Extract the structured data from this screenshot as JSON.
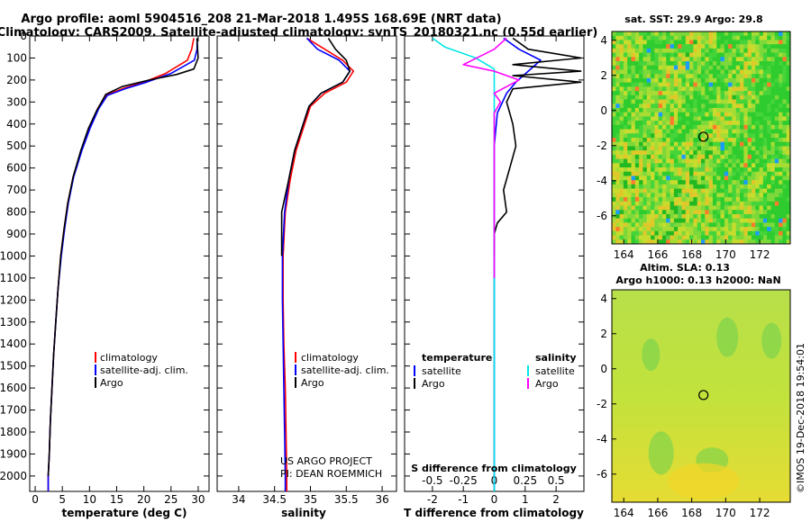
{
  "header": {
    "title_line1": "Argo profile: aoml 5904516_208 21-Mar-2018 1.495S 168.69E (NRT data)",
    "title_line2": "Climatology: CARS2009. Satellite-adjusted climatology: synTS_20180321.nc (0.55d earlier)"
  },
  "colors": {
    "climatology": "#ff0000",
    "satellite": "#0000ff",
    "argo": "#000000",
    "satellite_s": "#00e5e5",
    "argo_s": "#ff00ff"
  },
  "chart_data": [
    {
      "id": "temperature",
      "type": "line",
      "xlabel": "temperature (deg C)",
      "ylabel": "",
      "xlim": [
        -1,
        32
      ],
      "xticks": [
        "0",
        "5",
        "10",
        "15",
        "20",
        "25",
        "30"
      ],
      "ylim": [
        2070,
        0
      ],
      "yticks": [
        "0",
        "100",
        "200",
        "300",
        "400",
        "500",
        "600",
        "700",
        "800",
        "900",
        "1000",
        "1100",
        "1200",
        "1300",
        "1400",
        "1500",
        "1600",
        "1700",
        "1800",
        "1900",
        "2000"
      ],
      "legend": [
        "climatology",
        "satellite-adj. clim.",
        "Argo"
      ],
      "series": [
        {
          "name": "climatology",
          "color": "#ff0000",
          "points": [
            [
              29.2,
              10
            ],
            [
              28.8,
              60
            ],
            [
              28,
              110
            ],
            [
              24,
              170
            ],
            [
              20,
              210
            ],
            [
              16,
              240
            ],
            [
              13,
              270
            ],
            [
              11.5,
              330
            ],
            [
              10,
              420
            ],
            [
              8.5,
              520
            ],
            [
              7,
              640
            ],
            [
              6,
              760
            ],
            [
              5.3,
              880
            ],
            [
              4.7,
              1000
            ],
            [
              4.2,
              1150
            ],
            [
              3.8,
              1300
            ],
            [
              3.4,
              1450
            ],
            [
              3.1,
              1600
            ],
            [
              2.8,
              1750
            ],
            [
              2.6,
              1900
            ],
            [
              2.4,
              2000
            ],
            [
              2.4,
              2070
            ]
          ]
        },
        {
          "name": "satellite-adj. clim.",
          "color": "#0000ff",
          "points": [
            [
              29.8,
              10
            ],
            [
              29.8,
              60
            ],
            [
              29.3,
              110
            ],
            [
              25,
              170
            ],
            [
              20.5,
              210
            ],
            [
              16.5,
              240
            ],
            [
              13.3,
              270
            ],
            [
              11.7,
              330
            ],
            [
              10.1,
              420
            ],
            [
              8.6,
              520
            ],
            [
              7.1,
              640
            ],
            [
              6.1,
              760
            ],
            [
              5.4,
              880
            ],
            [
              4.8,
              1000
            ],
            [
              4.2,
              1150
            ],
            [
              3.8,
              1300
            ],
            [
              3.4,
              1450
            ],
            [
              3.1,
              1600
            ],
            [
              2.8,
              1750
            ],
            [
              2.6,
              1900
            ],
            [
              2.4,
              2000
            ],
            [
              2.4,
              2070
            ]
          ]
        },
        {
          "name": "Argo",
          "color": "#000000",
          "points": [
            [
              29.8,
              10
            ],
            [
              29.9,
              60
            ],
            [
              30,
              100
            ],
            [
              29.2,
              150
            ],
            [
              26,
              175
            ],
            [
              21,
              200
            ],
            [
              16,
              230
            ],
            [
              13,
              265
            ],
            [
              11.3,
              340
            ],
            [
              9.8,
              420
            ],
            [
              8.4,
              520
            ],
            [
              7,
              640
            ],
            [
              6,
              760
            ],
            [
              5.3,
              880
            ],
            [
              4.7,
              1000
            ],
            [
              4.2,
              1150
            ],
            [
              3.8,
              1300
            ],
            [
              3.4,
              1450
            ],
            [
              3.1,
              1600
            ],
            [
              2.8,
              1750
            ],
            [
              2.6,
              1900
            ],
            [
              2.4,
              2000
            ]
          ]
        }
      ]
    },
    {
      "id": "salinity",
      "type": "line",
      "xlabel": "salinity",
      "xlim": [
        33.7,
        36.2
      ],
      "xticks": [
        "34",
        "34.5",
        "35",
        "35.5",
        "36"
      ],
      "ylim": [
        2070,
        0
      ],
      "legend": [
        "climatology",
        "satellite-adj. clim.",
        "Argo"
      ],
      "annotation": [
        "US ARGO PROJECT",
        "PI: DEAN ROEMMICH"
      ],
      "series": [
        {
          "name": "climatology",
          "color": "#ff0000",
          "points": [
            [
              34.95,
              10
            ],
            [
              35.2,
              60
            ],
            [
              35.45,
              110
            ],
            [
              35.6,
              160
            ],
            [
              35.5,
              210
            ],
            [
              35.2,
              260
            ],
            [
              35.0,
              320
            ],
            [
              34.9,
              420
            ],
            [
              34.8,
              520
            ],
            [
              34.72,
              650
            ],
            [
              34.65,
              800
            ],
            [
              34.62,
              1000
            ],
            [
              34.62,
              1200
            ],
            [
              34.63,
              1400
            ],
            [
              34.65,
              1600
            ],
            [
              34.66,
              1800
            ],
            [
              34.67,
              2000
            ],
            [
              34.67,
              2070
            ]
          ]
        },
        {
          "name": "satellite-adj. clim.",
          "color": "#0000ff",
          "points": [
            [
              34.95,
              10
            ],
            [
              35.1,
              60
            ],
            [
              35.4,
              110
            ],
            [
              35.55,
              160
            ],
            [
              35.45,
              210
            ],
            [
              35.15,
              260
            ],
            [
              34.98,
              320
            ],
            [
              34.88,
              420
            ],
            [
              34.78,
              520
            ],
            [
              34.7,
              650
            ],
            [
              34.64,
              800
            ],
            [
              34.61,
              1000
            ],
            [
              34.61,
              1200
            ],
            [
              34.62,
              1400
            ],
            [
              34.63,
              1600
            ],
            [
              34.64,
              1800
            ],
            [
              34.65,
              2000
            ],
            [
              34.65,
              2070
            ]
          ]
        },
        {
          "name": "Argo",
          "color": "#000000",
          "points": [
            [
              35.25,
              10
            ],
            [
              35.35,
              60
            ],
            [
              35.5,
              110
            ],
            [
              35.55,
              160
            ],
            [
              35.45,
              210
            ],
            [
              35.15,
              260
            ],
            [
              34.98,
              320
            ],
            [
              34.88,
              420
            ],
            [
              34.78,
              520
            ],
            [
              34.7,
              650
            ],
            [
              34.6,
              800
            ],
            [
              34.6,
              1000
            ]
          ]
        }
      ]
    },
    {
      "id": "difference",
      "type": "line",
      "xlabel": "T difference from climatology",
      "xlabel_top": "S difference from climatology",
      "xlim": [
        -2.9,
        2.9
      ],
      "xticks": [
        "-2",
        "-1",
        "0",
        "1",
        "2"
      ],
      "xticks_top": [
        "-0.5",
        "-0.25",
        "0",
        "0.25",
        "0.5"
      ],
      "ylim": [
        2070,
        0
      ],
      "legend_left_title": "temperature",
      "legend_right_title": "salinity",
      "legend_left": [
        "satellite",
        "Argo"
      ],
      "legend_right": [
        "satellite",
        "Argo"
      ],
      "series": [
        {
          "name": "T satellite",
          "color": "#0000ff",
          "points": [
            [
              0.3,
              10
            ],
            [
              0.8,
              60
            ],
            [
              1.5,
              110
            ],
            [
              1.1,
              160
            ],
            [
              0.7,
              210
            ],
            [
              0.4,
              260
            ],
            [
              0.1,
              350
            ],
            [
              0,
              500
            ],
            [
              0,
              700
            ],
            [
              0,
              900
            ],
            [
              0,
              1100
            ],
            [
              0,
              1400
            ],
            [
              0,
              1700
            ],
            [
              0,
              2000
            ],
            [
              0,
              2070
            ]
          ]
        },
        {
          "name": "T Argo",
          "color": "#000000",
          "points": [
            [
              0.6,
              10
            ],
            [
              1.1,
              60
            ],
            [
              2.8,
              100
            ],
            [
              0.6,
              130
            ],
            [
              2.8,
              160
            ],
            [
              0.6,
              180
            ],
            [
              2.8,
              210
            ],
            [
              0.6,
              240
            ],
            [
              0.4,
              300
            ],
            [
              0.6,
              400
            ],
            [
              0.7,
              500
            ],
            [
              0.5,
              600
            ],
            [
              0.3,
              700
            ],
            [
              0.4,
              800
            ],
            [
              0.1,
              850
            ],
            [
              0,
              900
            ],
            [
              0,
              1000
            ]
          ]
        },
        {
          "name": "S satellite",
          "color": "#00e5e5",
          "points": [
            [
              -0.5,
              10
            ],
            [
              -0.4,
              50
            ],
            [
              -0.15,
              100
            ],
            [
              0,
              150
            ],
            [
              0,
              250
            ],
            [
              0,
              400
            ],
            [
              0,
              600
            ],
            [
              0,
              800
            ],
            [
              0,
              1000
            ],
            [
              0,
              1200
            ],
            [
              0,
              1400
            ],
            [
              0,
              1600
            ],
            [
              0,
              1800
            ],
            [
              0,
              2070
            ]
          ]
        },
        {
          "name": "S Argo",
          "color": "#ff00ff",
          "points": [
            [
              0.1,
              10
            ],
            [
              0,
              60
            ],
            [
              -0.25,
              130
            ],
            [
              0,
              160
            ],
            [
              0.2,
              200
            ],
            [
              0,
              260
            ],
            [
              0.05,
              300
            ],
            [
              0,
              350
            ],
            [
              0,
              450
            ],
            [
              0,
              550
            ],
            [
              0,
              700
            ],
            [
              0,
              800
            ],
            [
              0,
              900
            ],
            [
              0,
              1000
            ],
            [
              0,
              1100
            ]
          ]
        }
      ]
    },
    {
      "id": "sst_map",
      "type": "heatmap",
      "title": "sat. SST: 29.9 Argo: 29.8",
      "xlim": [
        163.3,
        173.8
      ],
      "ylim": [
        -7.6,
        4.5
      ],
      "xticks": [
        "164",
        "166",
        "168",
        "170",
        "172"
      ],
      "yticks": [
        "4",
        "2",
        "0",
        "-2",
        "-4",
        "-6"
      ],
      "float_position": [
        168.69,
        -1.495
      ]
    },
    {
      "id": "sla_map",
      "type": "heatmap",
      "title_line1": "Altim. SLA: 0.13",
      "title_line2": "Argo h1000: 0.13 h2000: NaN",
      "xlim": [
        163.3,
        173.8
      ],
      "ylim": [
        -7.6,
        4.5
      ],
      "xticks": [
        "164",
        "166",
        "168",
        "170",
        "172"
      ],
      "yticks": [
        "4",
        "2",
        "0",
        "-2",
        "-4",
        "-6"
      ],
      "float_position": [
        168.69,
        -1.495
      ]
    }
  ],
  "credit": "©IMOS 19-Dec-2018 19:54:01"
}
